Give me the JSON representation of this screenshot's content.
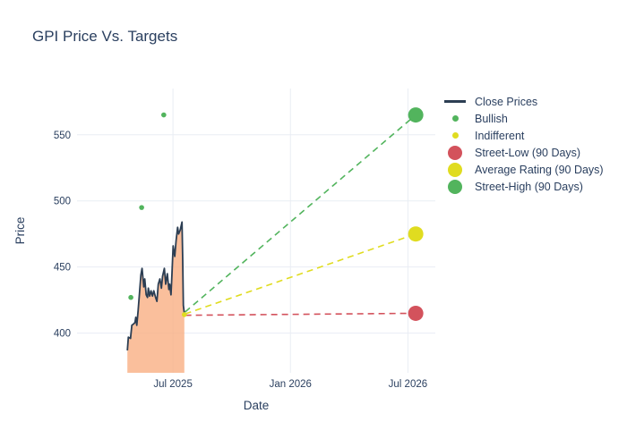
{
  "title": "GPI Price Vs. Targets",
  "chart_data": {
    "type": "line",
    "title": "GPI Price Vs. Targets",
    "xlabel": "Date",
    "ylabel": "Price",
    "x_unit": "months relative to Jul 2025",
    "xlim": [
      -4.9,
      13.4
    ],
    "ylim": [
      370,
      585
    ],
    "grid": true,
    "legend_position": "right",
    "background": "#ffffff",
    "grid_color": "#e9edf4",
    "text_color": "#2a3f5f",
    "x_ticks": [
      {
        "value": 0,
        "label": "Jul 2025"
      },
      {
        "value": 6,
        "label": "Jan 2026"
      },
      {
        "value": 12,
        "label": "Jul 2026"
      }
    ],
    "y_ticks": [
      {
        "value": 400,
        "label": "400"
      },
      {
        "value": 450,
        "label": "450"
      },
      {
        "value": 500,
        "label": "500"
      },
      {
        "value": 550,
        "label": "550"
      }
    ],
    "series": [
      {
        "name": "Close Prices",
        "type": "line+area",
        "legend_swatch": "line",
        "color": "#2c3e53",
        "fill_color": "#f8ad80",
        "fill_opacity": 0.78,
        "points": [
          [
            -2.33,
            387
          ],
          [
            -2.28,
            397
          ],
          [
            -2.17,
            396
          ],
          [
            -2.1,
            406
          ],
          [
            -2.01,
            407
          ],
          [
            -1.94,
            408
          ],
          [
            -1.9,
            412
          ],
          [
            -1.85,
            406
          ],
          [
            -1.78,
            417
          ],
          [
            -1.71,
            430
          ],
          [
            -1.64,
            444
          ],
          [
            -1.58,
            449
          ],
          [
            -1.53,
            441
          ],
          [
            -1.49,
            435
          ],
          [
            -1.44,
            441
          ],
          [
            -1.37,
            429
          ],
          [
            -1.3,
            427
          ],
          [
            -1.26,
            434
          ],
          [
            -1.19,
            428
          ],
          [
            -1.12,
            432
          ],
          [
            -1.05,
            428
          ],
          [
            -0.98,
            432
          ],
          [
            -0.89,
            427
          ],
          [
            -0.82,
            424
          ],
          [
            -0.75,
            437
          ],
          [
            -0.67,
            441
          ],
          [
            -0.59,
            434
          ],
          [
            -0.53,
            443
          ],
          [
            -0.44,
            449
          ],
          [
            -0.37,
            437
          ],
          [
            -0.29,
            445
          ],
          [
            -0.21,
            433
          ],
          [
            -0.17,
            437
          ],
          [
            -0.1,
            429
          ],
          [
            -0.05,
            445
          ],
          [
            0.01,
            466
          ],
          [
            0.09,
            458
          ],
          [
            0.16,
            470
          ],
          [
            0.24,
            480
          ],
          [
            0.29,
            475
          ],
          [
            0.37,
            478
          ],
          [
            0.46,
            484
          ],
          [
            0.5,
            455
          ],
          [
            0.53,
            421
          ],
          [
            0.58,
            415
          ]
        ]
      },
      {
        "name": "Bullish",
        "type": "scatter",
        "legend_swatch": "dot",
        "color": "#52b45d",
        "marker_radius": 2.8,
        "points": [
          [
            -2.15,
            427
          ],
          [
            -1.6,
            495
          ],
          [
            -0.47,
            565
          ]
        ]
      },
      {
        "name": "Indifferent",
        "type": "scatter",
        "legend_swatch": "dot",
        "color": "#e0dc20",
        "marker_radius": 2.8,
        "points": [
          [
            0.58,
            414
          ]
        ]
      },
      {
        "name": "Street-Low (90 Days)",
        "type": "target",
        "legend_swatch": "circle",
        "color": "#d3525c",
        "marker_radius": 8.5,
        "line_from": [
          0.62,
          413.5
        ],
        "points": [
          [
            12.4,
            415
          ]
        ]
      },
      {
        "name": "Average Rating (90 Days)",
        "type": "target",
        "legend_swatch": "circle",
        "color": "#e0dc20",
        "marker_radius": 8.5,
        "line_from": [
          0.62,
          414.5
        ],
        "points": [
          [
            12.4,
            475
          ]
        ]
      },
      {
        "name": "Street-High (90 Days)",
        "type": "target",
        "legend_swatch": "circle",
        "color": "#52b45d",
        "marker_radius": 8.5,
        "line_from": [
          0.62,
          416
        ],
        "points": [
          [
            12.4,
            565
          ]
        ]
      }
    ]
  }
}
